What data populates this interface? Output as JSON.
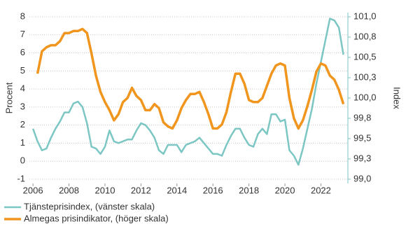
{
  "chart_data": {
    "type": "line",
    "y_label": "Procent",
    "y2_label": "Index",
    "xlim": [
      2005.8,
      2023.5
    ],
    "xticks": [
      2006,
      2008,
      2010,
      2012,
      2014,
      2016,
      2018,
      2020,
      2022
    ],
    "ylim": [
      -1,
      8
    ],
    "yticks": [
      -1,
      0,
      1,
      2,
      3,
      4,
      5,
      6,
      7,
      8
    ],
    "y2lim": [
      99,
      101
    ],
    "y2ticks": [
      {
        "value": 99,
        "label": "99,0"
      },
      {
        "value": 99.25,
        "label": "99,3"
      },
      {
        "value": 99.5,
        "label": "99,5"
      },
      {
        "value": 99.75,
        "label": "99,8"
      },
      {
        "value": 100,
        "label": "100,0"
      },
      {
        "value": 100.25,
        "label": "100,3"
      },
      {
        "value": 100.5,
        "label": "100,5"
      },
      {
        "value": 100.75,
        "label": "100,8"
      },
      {
        "value": 101,
        "label": "101,0"
      }
    ],
    "grid": true,
    "legend": "bottom-left",
    "series": [
      {
        "name": "Tjänsteprisindex, (vänster skala)",
        "color": "#7cc6c3",
        "x": [
          2006,
          2006.25,
          2006.5,
          2006.75,
          2007,
          2007.25,
          2007.5,
          2007.75,
          2008,
          2008.25,
          2008.5,
          2008.75,
          2009,
          2009.25,
          2009.5,
          2009.75,
          2010,
          2010.25,
          2010.5,
          2010.75,
          2011,
          2011.25,
          2011.5,
          2011.75,
          2012,
          2012.25,
          2012.5,
          2012.75,
          2013,
          2013.25,
          2013.5,
          2013.75,
          2014,
          2014.25,
          2014.5,
          2014.75,
          2015,
          2015.25,
          2015.5,
          2015.75,
          2016,
          2016.25,
          2016.5,
          2016.75,
          2017,
          2017.25,
          2017.5,
          2017.75,
          2018,
          2018.25,
          2018.5,
          2018.75,
          2019,
          2019.25,
          2019.5,
          2019.75,
          2020,
          2020.25,
          2020.5,
          2020.75,
          2021,
          2021.25,
          2021.5,
          2021.75,
          2022,
          2022.25,
          2022.5,
          2022.75,
          2023,
          2023.25
        ],
        "values": [
          1.8,
          1.1,
          0.6,
          0.7,
          1.3,
          1.8,
          2.2,
          2.7,
          2.7,
          3.2,
          3.3,
          3.0,
          2.1,
          0.8,
          0.7,
          0.4,
          0.8,
          1.7,
          1.1,
          1.0,
          1.1,
          1.2,
          1.2,
          1.7,
          2.1,
          2.0,
          1.7,
          1.3,
          0.6,
          0.4,
          0.9,
          0.9,
          0.9,
          0.5,
          0.9,
          1.0,
          1.1,
          1.3,
          1.0,
          0.7,
          0.4,
          0.4,
          0.3,
          0.9,
          1.4,
          1.8,
          1.8,
          1.3,
          0.9,
          0.8,
          1.5,
          1.8,
          1.5,
          2.6,
          2.6,
          2.2,
          2.3,
          0.6,
          0.3,
          -0.2,
          0.7,
          1.8,
          2.9,
          4.3,
          5.5,
          6.7,
          7.9,
          7.8,
          7.4,
          5.9
        ]
      },
      {
        "name": "Almegas prisindikator, (höger skala)",
        "color": "#f0951e",
        "axis": "y2",
        "x": [
          2006.25,
          2006.5,
          2006.75,
          2007,
          2007.25,
          2007.5,
          2007.75,
          2008,
          2008.25,
          2008.5,
          2008.75,
          2009,
          2009.25,
          2009.5,
          2009.75,
          2010,
          2010.25,
          2010.5,
          2010.75,
          2011,
          2011.25,
          2011.5,
          2011.75,
          2012,
          2012.25,
          2012.5,
          2012.75,
          2013,
          2013.25,
          2013.5,
          2013.75,
          2014,
          2014.25,
          2014.5,
          2014.75,
          2015,
          2015.25,
          2015.5,
          2015.75,
          2016,
          2016.25,
          2016.5,
          2016.75,
          2017,
          2017.25,
          2017.5,
          2017.75,
          2018,
          2018.25,
          2018.5,
          2018.75,
          2019,
          2019.25,
          2019.5,
          2019.75,
          2020,
          2020.25,
          2020.5,
          2020.75,
          2021,
          2021.25,
          2021.5,
          2021.75,
          2022,
          2022.25,
          2022.5,
          2022.75,
          2023,
          2023.25
        ],
        "values": [
          100.3,
          100.575,
          100.625,
          100.65,
          100.65,
          100.7,
          100.8,
          100.8,
          100.825,
          100.825,
          100.85,
          100.8,
          100.55,
          100.275,
          100.075,
          99.95,
          99.85,
          99.725,
          99.8,
          99.95,
          100.0,
          100.125,
          100.025,
          99.975,
          99.85,
          99.85,
          99.925,
          99.875,
          99.7,
          99.65,
          99.625,
          99.725,
          99.875,
          99.975,
          100.05,
          100.05,
          100.075,
          99.95,
          99.8,
          99.625,
          99.625,
          99.675,
          99.825,
          100.075,
          100.3,
          100.3,
          100.175,
          99.975,
          99.95,
          99.95,
          100.0,
          100.15,
          100.3,
          100.4,
          100.425,
          100.4,
          100.0,
          99.75,
          99.625,
          99.725,
          99.9,
          100.1,
          100.325,
          100.425,
          100.4,
          100.275,
          100.225,
          100.1,
          99.925
        ]
      }
    ]
  }
}
